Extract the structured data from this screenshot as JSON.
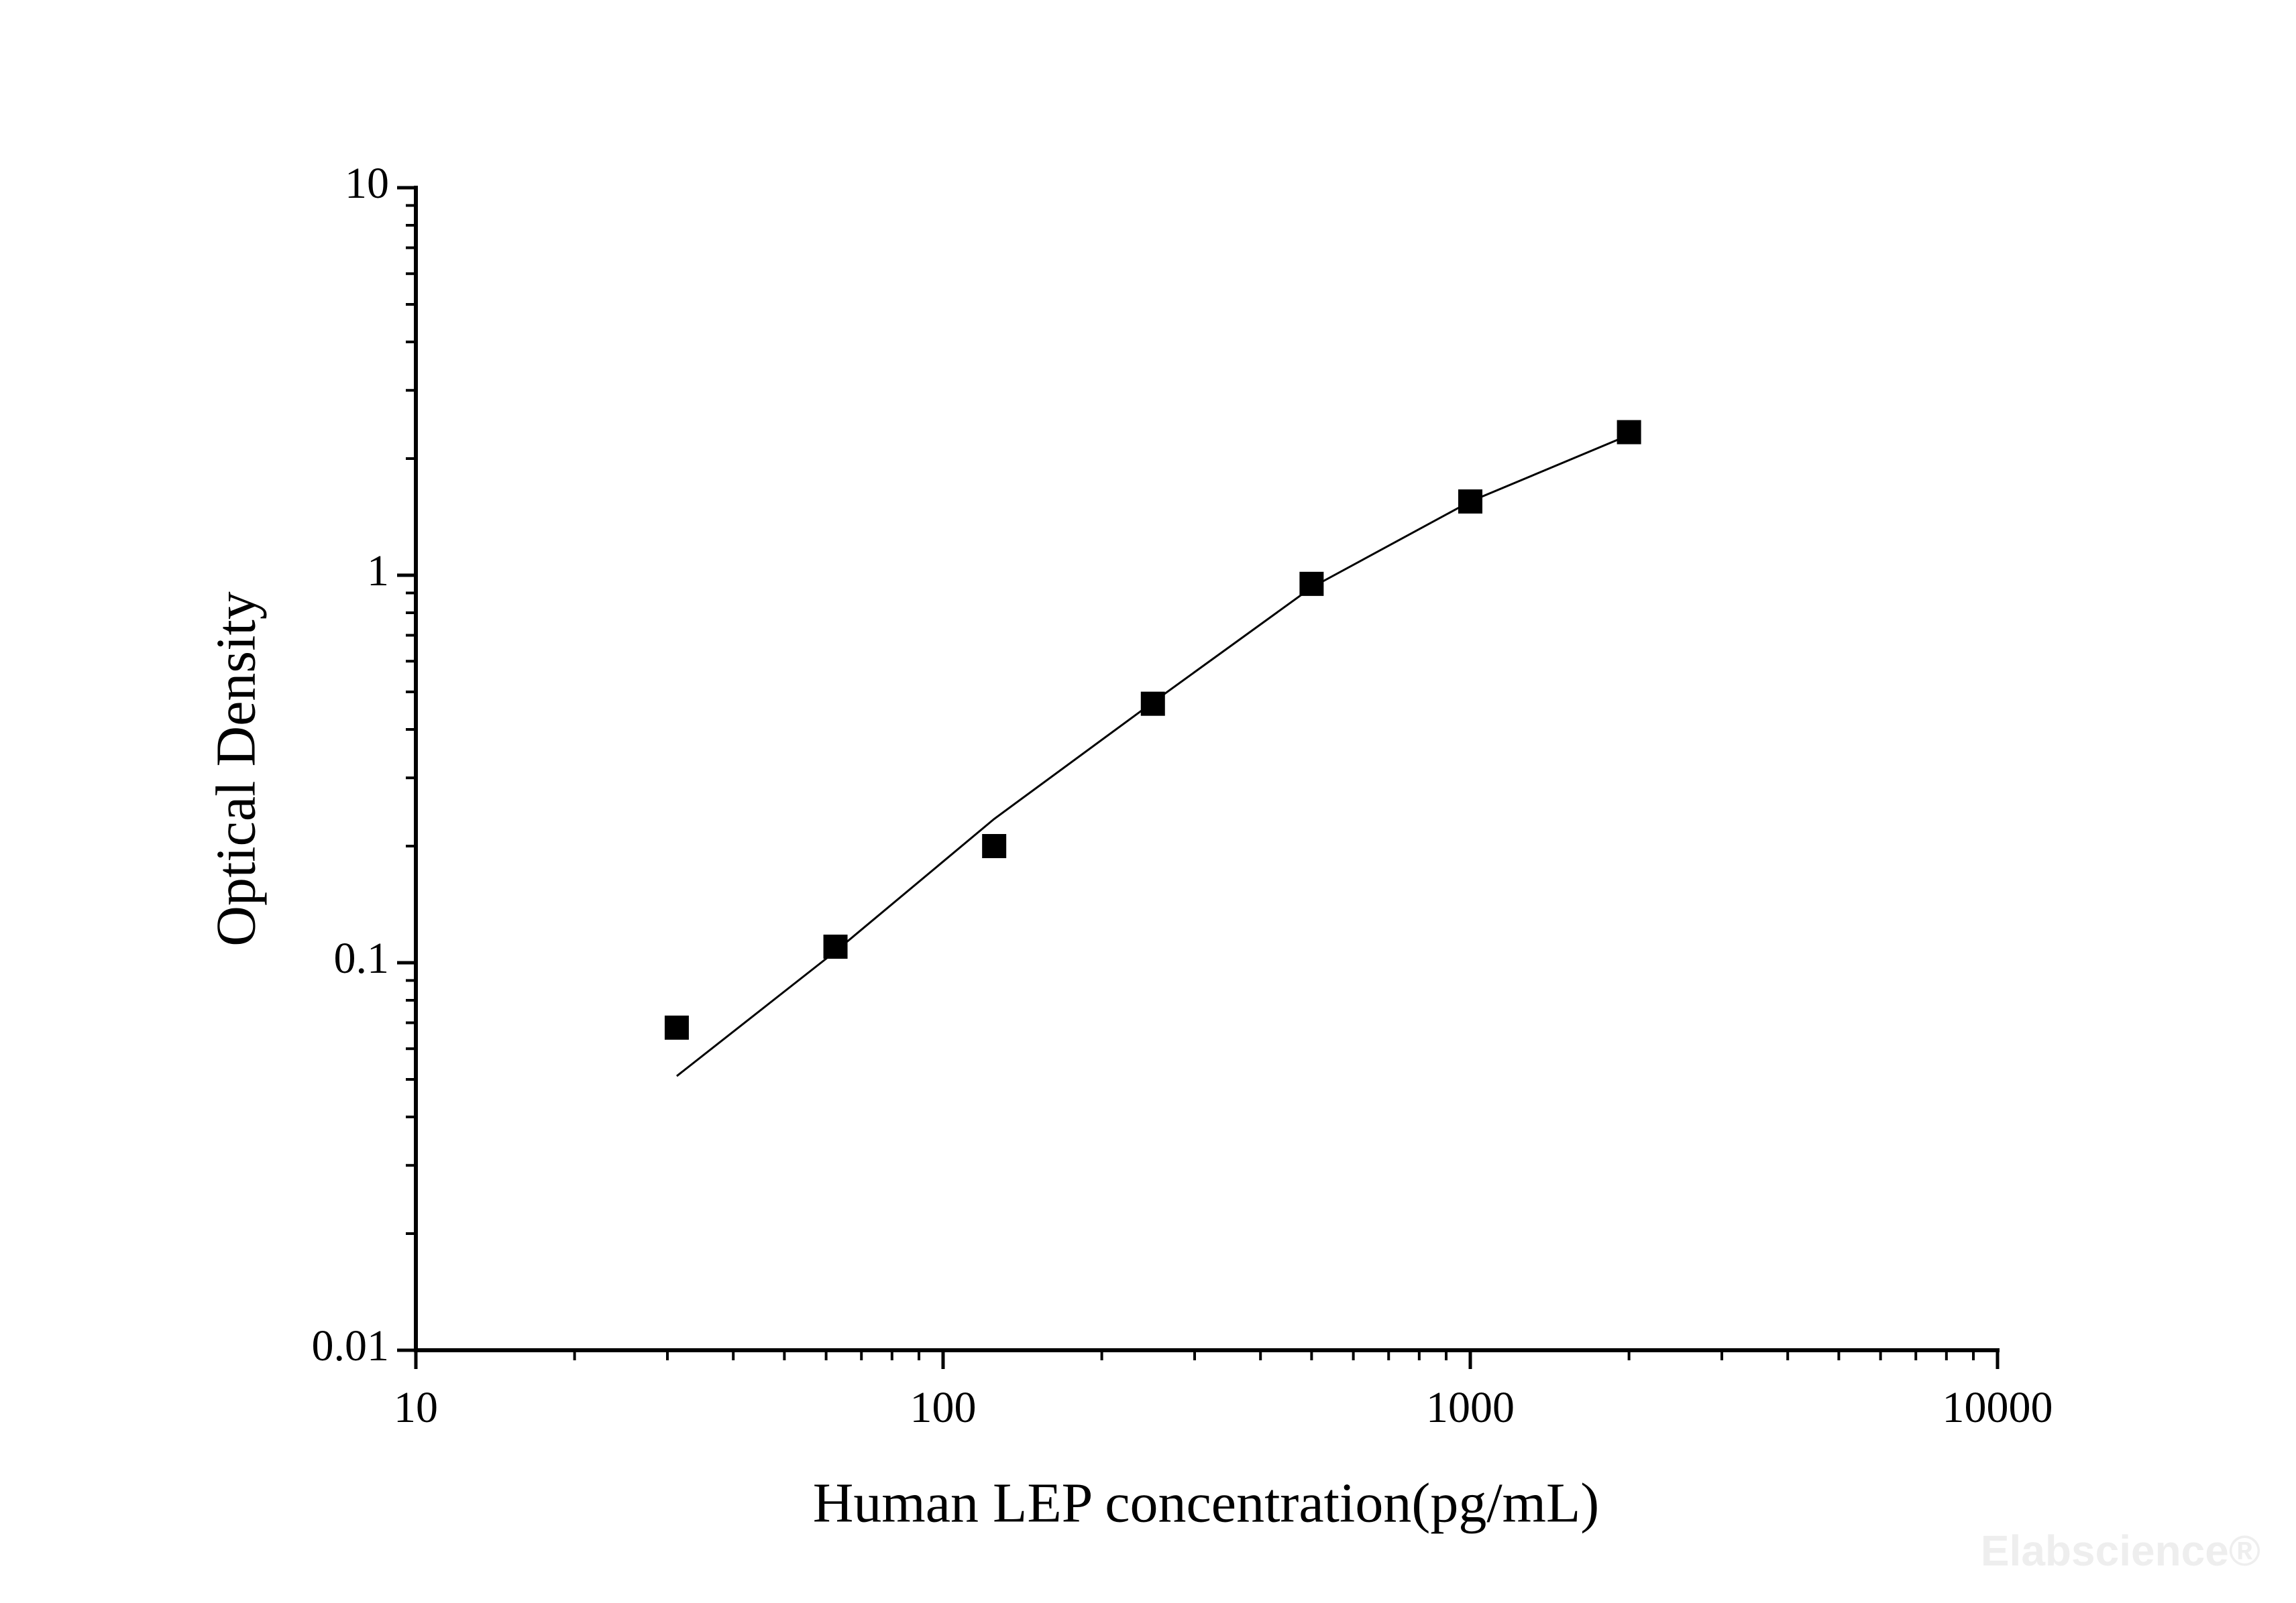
{
  "chart_data": {
    "type": "scatter",
    "x_label": "Human LEP concentration(pg/mL)",
    "y_label": "Optical Density",
    "watermark": "Elabscience®",
    "x": [
      31.25,
      62.5,
      125,
      250,
      500,
      1000,
      2000
    ],
    "series": [
      {
        "color": "#000000",
        "style": "marker",
        "values": [
          0.068,
          0.11,
          0.2,
          0.466,
          0.95,
          1.55,
          2.34
        ]
      },
      {
        "color": "#000000",
        "style": "line",
        "values": [
          0.051,
          0.107,
          0.235,
          0.47,
          0.93,
          1.55,
          2.3
        ]
      }
    ],
    "xlim": [
      10,
      10000
    ],
    "xticks": [
      10,
      100,
      1000,
      10000
    ],
    "ylim": [
      0.01,
      10
    ],
    "yticks": [
      0.01,
      0.1,
      1,
      10
    ],
    "xscale": "log",
    "yscale": "log",
    "minor_ticks": true,
    "grid": false
  }
}
